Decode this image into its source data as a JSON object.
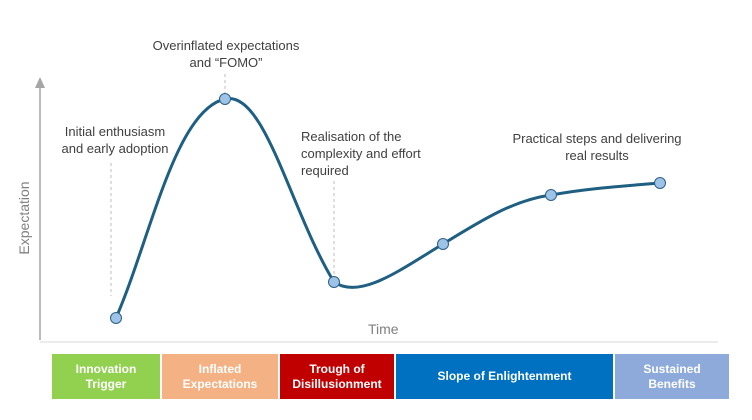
{
  "annotations": {
    "peak": "Overinflated expectations\nand “FOMO”",
    "trigger": "Initial enthusiasm\nand early adoption",
    "trough": "Realisation of the\ncomplexity and effort\nrequired",
    "slope": "Practical steps and delivering\nreal results"
  },
  "axes": {
    "y_label": "Expectation",
    "x_label": "Time"
  },
  "phases": [
    {
      "label": "Innovation\nTrigger",
      "color": "#92d050"
    },
    {
      "label": "Inflated\nExpectations",
      "color": "#f4b183"
    },
    {
      "label": "Trough of\nDisillusionment",
      "color": "#c00000"
    },
    {
      "label": "Slope of Enlightenment",
      "color": "#0070c0"
    },
    {
      "label": "Sustained\nBenefits",
      "color": "#8eaadb"
    }
  ],
  "colors": {
    "curve": "#1f5f82",
    "marker_fill": "#9dc3e6",
    "marker_stroke": "#2e5f8a",
    "axis": "#a6a6a6",
    "leader": "#bfbfbf"
  }
}
